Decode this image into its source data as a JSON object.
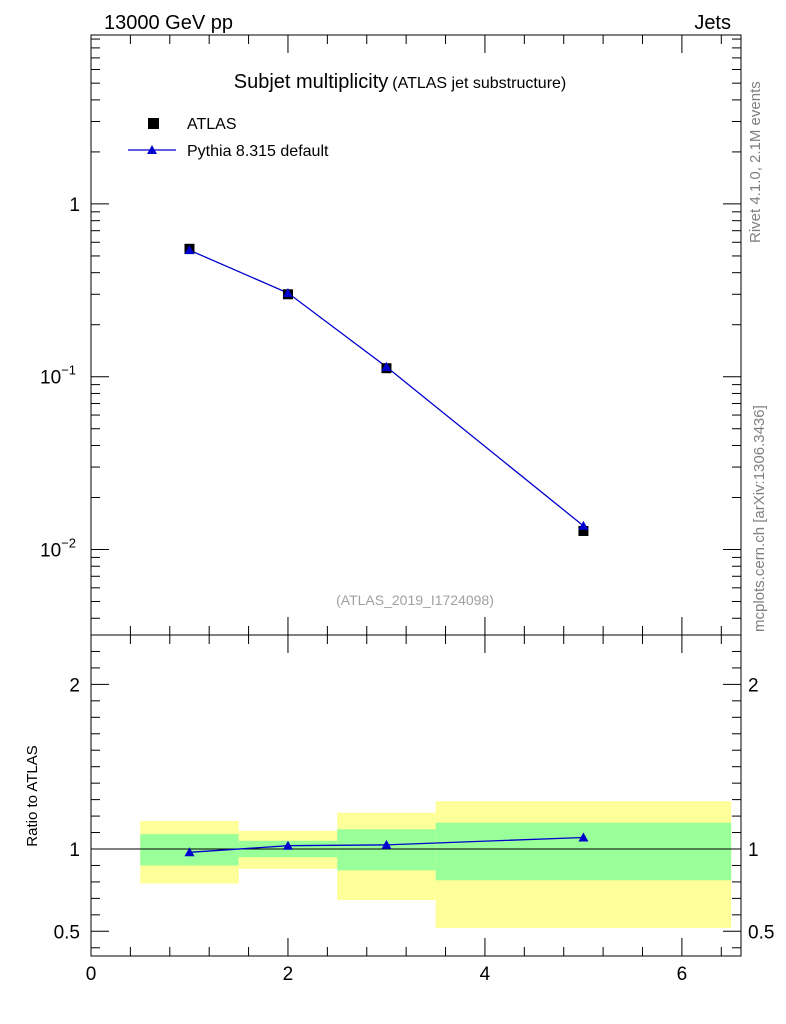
{
  "header": {
    "energy_label": "13000 GeV pp",
    "category_label": "Jets"
  },
  "side_labels": {
    "rivet": "Rivet 4.1.0,  2.1M events",
    "source": "mcplots.cern.ch [arXiv:1306.3436]"
  },
  "colors": {
    "mc_line": "#0000cc",
    "mc_marker": "#0000cc",
    "data_marker": "#000000",
    "band_inner": "#99ff99",
    "band_outer": "#ffff99",
    "analysis_id_text": "#a0a0a0"
  },
  "chart_data": [
    {
      "type": "scatter",
      "title": "Subjet multiplicity",
      "subtitle": "(ATLAS jet substructure)",
      "analysis_id": "(ATLAS_2019_I1724098)",
      "xlabel": "",
      "ylabel": "",
      "yscale": "log",
      "xlim": [
        0,
        6.6
      ],
      "ylim": [
        0.0032,
        9.5
      ],
      "y_ticks": [
        {
          "value": 1,
          "label": "1",
          "exp": ""
        },
        {
          "value": 0.1,
          "label": "10",
          "exp": "−1"
        },
        {
          "value": 0.01,
          "label": "10",
          "exp": "−2"
        }
      ],
      "legend": [
        "ATLAS",
        "Pythia 8.315 default"
      ],
      "legend_position": "top-left",
      "series": [
        {
          "name": "ATLAS",
          "x": [
            1,
            2,
            3,
            5
          ],
          "y": [
            0.55,
            0.3,
            0.112,
            0.0128
          ],
          "marker": "square"
        },
        {
          "name": "Pythia 8.315 default",
          "x": [
            1,
            2,
            3,
            5
          ],
          "y": [
            0.54,
            0.305,
            0.114,
            0.0137
          ],
          "marker": "triangle"
        }
      ]
    },
    {
      "type": "scatter",
      "title": "",
      "xlabel": "",
      "ylabel": "Ratio to ATLAS",
      "xlim": [
        0,
        6.6
      ],
      "ylim": [
        0.35,
        2.3
      ],
      "x_ticks": [
        0,
        2,
        4,
        6
      ],
      "y_ticks": [
        {
          "value": 0.5,
          "label": "0.5"
        },
        {
          "value": 1,
          "label": "1"
        },
        {
          "value": 2,
          "label": "2"
        }
      ],
      "reference_line": 1,
      "bands": [
        {
          "x0": 0.5,
          "x1": 1.5,
          "inner": [
            0.9,
            1.09
          ],
          "outer": [
            0.79,
            1.17
          ]
        },
        {
          "x0": 1.5,
          "x1": 2.5,
          "inner": [
            0.95,
            1.05
          ],
          "outer": [
            0.88,
            1.11
          ]
        },
        {
          "x0": 2.5,
          "x1": 3.5,
          "inner": [
            0.87,
            1.12
          ],
          "outer": [
            0.69,
            1.22
          ]
        },
        {
          "x0": 3.5,
          "x1": 6.5,
          "inner": [
            0.81,
            1.16
          ],
          "outer": [
            0.52,
            1.29
          ]
        }
      ],
      "series": [
        {
          "name": "Pythia 8.315 default",
          "x": [
            1,
            2,
            3,
            5
          ],
          "y": [
            0.98,
            1.02,
            1.025,
            1.07
          ],
          "marker": "triangle"
        }
      ]
    }
  ]
}
